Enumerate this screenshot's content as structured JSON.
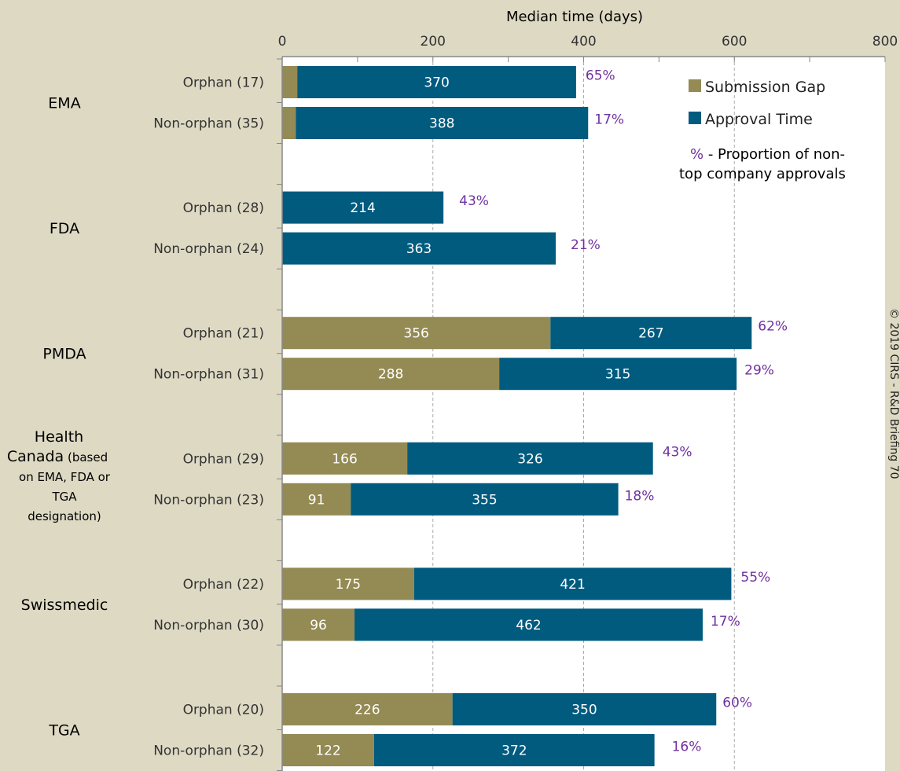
{
  "chart_data": {
    "type": "bar",
    "orientation": "horizontal",
    "stacked": true,
    "title": "Median time (days)",
    "xlim": [
      0,
      800
    ],
    "xticks": [
      0,
      200,
      400,
      600,
      800
    ],
    "groups": [
      {
        "agency": "EMA",
        "note": "",
        "rows": [
          {
            "label": "Orphan (17)",
            "submission_gap": 20,
            "approval_time": 370,
            "gap_label": "",
            "pct": "65%"
          },
          {
            "label": "Non-orphan (35)",
            "submission_gap": 18,
            "approval_time": 388,
            "gap_label": "",
            "pct": "17%"
          }
        ]
      },
      {
        "agency": "FDA",
        "note": "",
        "rows": [
          {
            "label": "Orphan (28)",
            "submission_gap": 0,
            "approval_time": 214,
            "gap_label": "",
            "pct": "43%"
          },
          {
            "label": "Non-orphan (24)",
            "submission_gap": 0,
            "approval_time": 363,
            "gap_label": "",
            "pct": "21%"
          }
        ]
      },
      {
        "agency": "PMDA",
        "note": "",
        "rows": [
          {
            "label": "Orphan (21)",
            "submission_gap": 356,
            "approval_time": 267,
            "gap_label": "356",
            "pct": "62%"
          },
          {
            "label": "Non-orphan (31)",
            "submission_gap": 288,
            "approval_time": 315,
            "gap_label": "288",
            "pct": "29%"
          }
        ]
      },
      {
        "agency": "Health Canada",
        "note": "(based on EMA, FDA or TGA designation)",
        "rows": [
          {
            "label": "Orphan (29)",
            "submission_gap": 166,
            "approval_time": 326,
            "gap_label": "166",
            "pct": "43%"
          },
          {
            "label": "Non-orphan (23)",
            "submission_gap": 91,
            "approval_time": 355,
            "gap_label": "91",
            "pct": "18%"
          }
        ]
      },
      {
        "agency": "Swissmedic",
        "note": "",
        "rows": [
          {
            "label": "Orphan (22)",
            "submission_gap": 175,
            "approval_time": 421,
            "gap_label": "175",
            "pct": "55%"
          },
          {
            "label": "Non-orphan (30)",
            "submission_gap": 96,
            "approval_time": 462,
            "gap_label": "96",
            "pct": "17%"
          }
        ]
      },
      {
        "agency": "TGA",
        "note": "",
        "rows": [
          {
            "label": "Orphan (20)",
            "submission_gap": 226,
            "approval_time": 350,
            "gap_label": "226",
            "pct": "60%"
          },
          {
            "label": "Non-orphan (32)",
            "submission_gap": 122,
            "approval_time": 372,
            "gap_label": "122",
            "pct": "16%"
          }
        ]
      }
    ],
    "series": [
      {
        "name": "Submission Gap",
        "color": "#948a54"
      },
      {
        "name": "Approval Time",
        "color": "#005b7f"
      }
    ],
    "legend_position": "top-right",
    "pct_color": "#7030a0",
    "pct_note": "- Proportion of non-top company approvals",
    "pct_note_symbol": "%",
    "grid": true
  },
  "copyright": "© 2019 CIRS - R&D Briefing 70"
}
